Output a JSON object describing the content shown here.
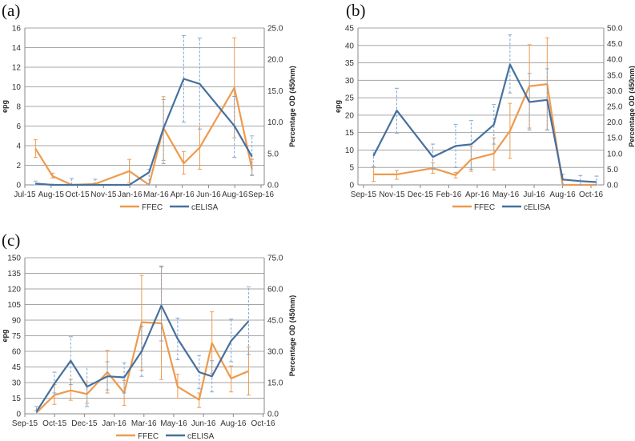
{
  "colors": {
    "FFEC": "#EE9A4D",
    "cELISA": "#46709E",
    "cELISA_error": "#7FA6D4",
    "grid": "#A6A6A6"
  },
  "chart_data": [
    {
      "panel_label": "(a)",
      "type": "line",
      "ylabel": "epg",
      "y2label": "Percentage OD (450nm)",
      "ylim": [
        0,
        16
      ],
      "yticks": [
        "0",
        "2",
        "4",
        "6",
        "8",
        "10",
        "12",
        "14",
        "16"
      ],
      "y2lim": [
        0,
        25
      ],
      "y2ticks": [
        "0.0",
        "5.0",
        "10.0",
        "15.0",
        "20.0",
        "25.0"
      ],
      "xlim": [
        "2015-07-01",
        "2016-09-22"
      ],
      "xticks": [
        "Jul-15",
        "Aug-15",
        "Oct-15",
        "Nov-15",
        "Jan-16",
        "Mar-16",
        "Apr-16",
        "Jun-16",
        "Aug-16",
        "Sep-16"
      ],
      "xtick_range": [
        "2015-07-01",
        "2016-09-16"
      ],
      "grid": true,
      "legend": "bottom",
      "x": [
        "2015-07-21",
        "2015-08-22",
        "2015-09-27",
        "2015-11-10",
        "2016-01-13",
        "2016-02-19",
        "2016-03-17",
        "2016-04-24",
        "2016-05-24",
        "2016-07-28",
        "2016-08-30"
      ],
      "series": [
        {
          "name": "FFEC",
          "axis": "left",
          "values": [
            3.7,
            0.9,
            0,
            0.1,
            1.4,
            0,
            5.8,
            2.2,
            3.8,
            9.9,
            1.6
          ],
          "error": [
            [
              2.8,
              4.6
            ],
            [
              0.7,
              1.2
            ],
            [
              0,
              0
            ],
            [
              0,
              0.2
            ],
            [
              0.2,
              2.6
            ],
            [
              0,
              0
            ],
            [
              2.5,
              9
            ],
            [
              1.1,
              3.4
            ],
            [
              1.6,
              6
            ],
            [
              4.8,
              15
            ],
            [
              1,
              2.6
            ]
          ]
        },
        {
          "name": "cELISA",
          "axis": "right",
          "values": [
            0.2,
            0,
            0,
            0,
            0,
            2.0,
            9.0,
            16.9,
            16.1,
            9.4,
            4.5
          ],
          "error": [
            [
              0,
              0.6
            ],
            [
              0,
              0.1
            ],
            [
              0,
              1
            ],
            [
              0,
              0.9
            ],
            [
              0,
              0
            ],
            [
              0,
              2.5
            ],
            [
              3.4,
              13.6
            ],
            [
              10,
              23.8
            ],
            [
              8.9,
              23.4
            ],
            [
              4.4,
              14.1
            ],
            [
              1.5,
              7.8
            ]
          ]
        }
      ]
    },
    {
      "panel_label": "(b)",
      "type": "line",
      "ylabel": "epg",
      "y2label": "Percentage OD (450nm)",
      "ylim": [
        0,
        45
      ],
      "yticks": [
        "0",
        "5",
        "10",
        "15",
        "20",
        "25",
        "30",
        "35",
        "40",
        "45"
      ],
      "y2lim": [
        0,
        50
      ],
      "y2ticks": [
        "0.0",
        "5.0",
        "10.0",
        "15.0",
        "20.0",
        "25.0",
        "30.0",
        "35.0",
        "40.0",
        "45.0",
        "50.0"
      ],
      "xlim": [
        "2015-08-22",
        "2016-11-07"
      ],
      "xticks": [
        "Sep-15",
        "Nov-15",
        "Dec-15",
        "Feb-16",
        "Apr-16",
        "May-16",
        "Jul-16",
        "Aug-16",
        "Oct-16"
      ],
      "xtick_range": [
        "2015-09-01",
        "2016-10-15"
      ],
      "grid": true,
      "legend": "bottom",
      "x": [
        "2015-09-19",
        "2015-10-31",
        "2016-01-04",
        "2016-02-14",
        "2016-03-13",
        "2016-04-23",
        "2016-05-22",
        "2016-06-26",
        "2016-07-28",
        "2016-08-25",
        "2016-09-26",
        "2016-10-25"
      ],
      "series": [
        {
          "name": "FFEC",
          "axis": "left",
          "values": [
            3,
            3,
            4.8,
            2.8,
            7.3,
            9,
            15.5,
            28.3,
            28.9,
            0,
            0,
            0
          ],
          "error": [
            [
              1,
              5
            ],
            [
              1.6,
              4.1
            ],
            [
              3.3,
              6.4
            ],
            [
              2,
              3.6
            ],
            [
              3.9,
              11
            ],
            [
              4.3,
              13.5
            ],
            [
              7.6,
              23.4
            ],
            [
              16.3,
              40.2
            ],
            [
              15.8,
              42.2
            ],
            [
              0,
              0
            ],
            [
              0,
              0
            ],
            [
              0,
              0
            ]
          ]
        },
        {
          "name": "cELISA",
          "axis": "right",
          "values": [
            9.2,
            23.7,
            8.9,
            12.4,
            12.9,
            19.2,
            38.4,
            26.4,
            27.1,
            1.7,
            1.2,
            0.9
          ],
          "error": [
            [
              5.8,
              11
            ],
            [
              16.5,
              30.8
            ],
            [
              5,
              13
            ],
            [
              5.5,
              19.3
            ],
            [
              5,
              20.5
            ],
            [
              13,
              25.6
            ],
            [
              29.3,
              47.8
            ],
            [
              17.5,
              35.5
            ],
            [
              17.5,
              37
            ],
            [
              0,
              3.4
            ],
            [
              0,
              3
            ],
            [
              0,
              2.8
            ]
          ]
        }
      ]
    },
    {
      "panel_label": "(c)",
      "type": "line",
      "ylabel": "epg",
      "y2label": "Percentage OD (450nm)",
      "ylim": [
        0,
        150
      ],
      "yticks": [
        "0",
        "15",
        "30",
        "45",
        "60",
        "75",
        "90",
        "105",
        "120",
        "135",
        "150"
      ],
      "y2lim": [
        0,
        75
      ],
      "y2ticks": [
        "0.0",
        "15.0",
        "30.0",
        "45.0",
        "60.0",
        "75.0"
      ],
      "xlim": [
        "2015-09-01",
        "2016-10-17"
      ],
      "xticks": [
        "Sep-15",
        "Oct-15",
        "Dec-15",
        "Jan-16",
        "Mar-16",
        "May-16",
        "Jun-16",
        "Aug-16",
        "Oct-16"
      ],
      "xtick_range": [
        "2015-09-01",
        "2016-10-15"
      ],
      "grid": true,
      "legend": "bottom",
      "x": [
        "2015-09-21",
        "2015-10-22",
        "2015-11-19",
        "2015-12-17",
        "2016-01-21",
        "2016-02-19",
        "2016-03-20",
        "2016-04-23",
        "2016-05-21",
        "2016-06-27",
        "2016-07-19",
        "2016-08-21",
        "2016-09-20"
      ],
      "series": [
        {
          "name": "FFEC",
          "axis": "left",
          "values": [
            1,
            18,
            22.5,
            19,
            40,
            20,
            88,
            87,
            26,
            13.5,
            68,
            34,
            41
          ],
          "error": [
            [
              0,
              3
            ],
            [
              9,
              28
            ],
            [
              13,
              33
            ],
            [
              10,
              30
            ],
            [
              20,
              61
            ],
            [
              8,
              32
            ],
            [
              42,
              133
            ],
            [
              33,
              141
            ],
            [
              15,
              38
            ],
            [
              6,
              20
            ],
            [
              39,
              98
            ],
            [
              21,
              46
            ],
            [
              18,
              64
            ]
          ]
        },
        {
          "name": "cELISA",
          "axis": "right",
          "values": [
            1,
            14.5,
            25.5,
            13,
            18,
            17.5,
            30,
            52,
            36,
            20,
            18,
            35,
            44.5
          ],
          "error": [
            [
              0,
              3.5
            ],
            [
              10,
              20
            ],
            [
              14,
              37
            ],
            [
              3.5,
              22.5
            ],
            [
              11.5,
              25
            ],
            [
              10,
              24.5
            ],
            [
              18,
              42
            ],
            [
              35,
              71
            ],
            [
              26,
              46
            ],
            [
              12,
              28
            ],
            [
              10.5,
              25.5
            ],
            [
              25,
              45.5
            ],
            [
              28.5,
              61
            ]
          ]
        }
      ]
    }
  ]
}
